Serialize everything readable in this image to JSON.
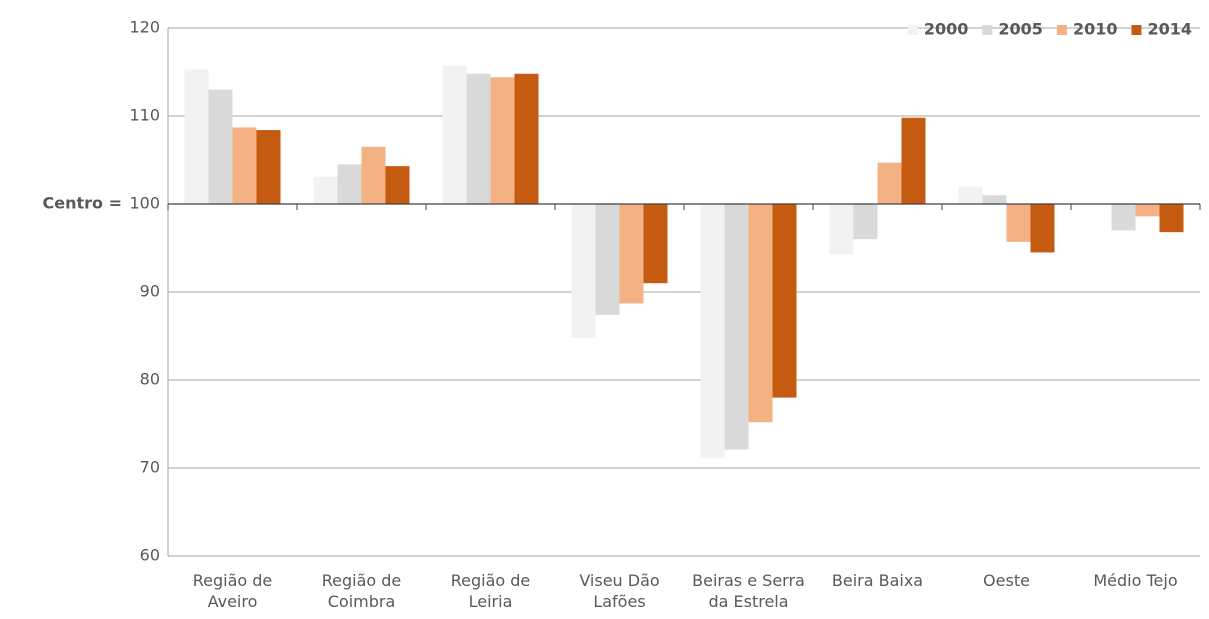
{
  "chart_data": {
    "type": "bar",
    "baseline_label": "Centro =",
    "baseline": 100,
    "categories": [
      "Região de Aveiro",
      "Região de Coimbra",
      "Região de Leiria",
      "Viseu Dão Lafões",
      "Beiras e Serra da Estrela",
      "Beira Baixa",
      "Oeste",
      "Médio Tejo"
    ],
    "series": [
      {
        "name": "2000",
        "color": "#f2f2f2",
        "values": [
          115.3,
          103.1,
          115.7,
          84.8,
          71.1,
          94.3,
          102.0,
          100.1
        ]
      },
      {
        "name": "2005",
        "color": "#d9d9d9",
        "values": [
          113.0,
          104.5,
          114.8,
          87.4,
          72.1,
          96.0,
          101.0,
          97.0
        ]
      },
      {
        "name": "2010",
        "color": "#f4b183",
        "values": [
          108.7,
          106.5,
          114.4,
          88.7,
          75.2,
          104.7,
          95.7,
          98.6
        ]
      },
      {
        "name": "2014",
        "color": "#c55a11",
        "values": [
          108.4,
          104.3,
          114.8,
          91.0,
          78.0,
          109.8,
          94.5,
          96.8
        ]
      }
    ],
    "ylim": [
      60,
      120
    ],
    "yticks": [
      60,
      70,
      80,
      90,
      100,
      110,
      120
    ],
    "grid": true,
    "legend": "top-right"
  }
}
